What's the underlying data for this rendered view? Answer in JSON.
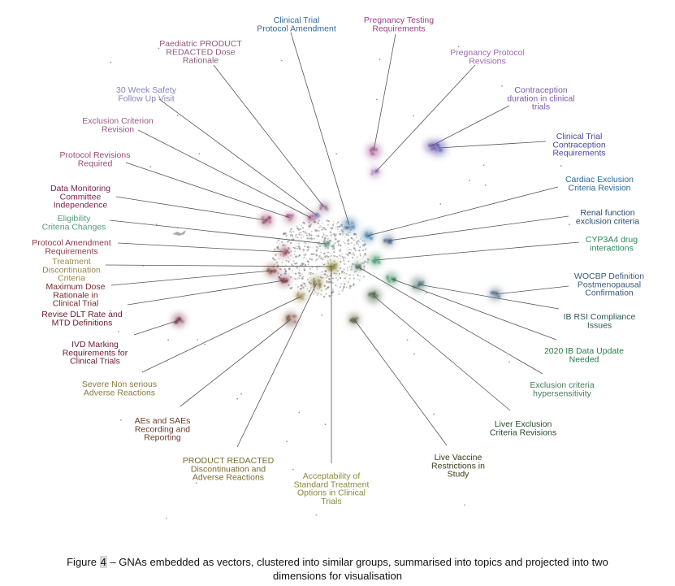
{
  "caption": {
    "prefix": "Figure ",
    "number": "4",
    "line1_rest": " – GNAs embedded as vectors, clustered into similar groups, summarised into topics and projected into two",
    "line2": "dimensions for visualisation"
  },
  "topics": [
    {
      "lines": [
        "Clinical Trial",
        "Protocol Amendment"
      ],
      "color": "#2f6a9e"
    },
    {
      "lines": [
        "Pregnancy Testing",
        "Requirements"
      ],
      "color": "#9a3f88"
    },
    {
      "lines": [
        "Paediatric PRODUCT",
        "REDACTED Dose",
        "Rationale"
      ],
      "color": "#8a5a80"
    },
    {
      "lines": [
        "Pregnancy Protocol",
        "Revisions"
      ],
      "color": "#a06ab4"
    },
    {
      "lines": [
        "Contraception",
        "duration in clinical",
        "trials"
      ],
      "color": "#7a5aa6"
    },
    {
      "lines": [
        "Clinical Trial",
        "Contraception",
        "Requirements"
      ],
      "color": "#4a48a6"
    },
    {
      "lines": [
        "30 Week Safety",
        "Follow Up Visit"
      ],
      "color": "#8484b8"
    },
    {
      "lines": [
        "Exclusion Criterion",
        "Revision"
      ],
      "color": "#9a5a84"
    },
    {
      "lines": [
        "Protocol Revisions",
        "Required"
      ],
      "color": "#9a4a7a"
    },
    {
      "lines": [
        "Data Monitoring",
        "Committee",
        "Independence"
      ],
      "color": "#7a1f4a"
    },
    {
      "lines": [
        "Eligibility",
        "Criteria Changes"
      ],
      "color": "#5a9a7a"
    },
    {
      "lines": [
        "Protocol Amendment",
        "Requirements"
      ],
      "color": "#8a3a4a"
    },
    {
      "lines": [
        "Treatment",
        "Discontinuation",
        "Criteria"
      ],
      "color": "#9a8a4a"
    },
    {
      "lines": [
        "Maximum Dose",
        "Rationale in",
        "Clinical Trial"
      ],
      "color": "#7a2a2a"
    },
    {
      "lines": [
        "Revise DLT Rate and",
        "MTD Definitions"
      ],
      "color": "#6a1a2a"
    },
    {
      "lines": [
        "IVD Marking",
        "Requirements for",
        "Clinical Trials"
      ],
      "color": "#6a1a30"
    },
    {
      "lines": [
        "Severe Non serious",
        "Adverse Reactions"
      ],
      "color": "#8a7a3a"
    },
    {
      "lines": [
        "AEs and SAEs",
        "Recording and",
        "Reporting"
      ],
      "color": "#6a3a2a"
    },
    {
      "lines": [
        "PRODUCT REDACTED",
        "Discontinuation and",
        "Adverse Reactions"
      ],
      "color": "#7a6a2a"
    },
    {
      "lines": [
        "Acceptability of",
        "Standard Treatment",
        "Options in Clinical",
        "Trials"
      ],
      "color": "#8a8a3a"
    },
    {
      "lines": [
        "Live Vaccine",
        "Restrictions in",
        "Study"
      ],
      "color": "#3a3a1a"
    },
    {
      "lines": [
        "Liver Exclusion",
        "Criteria Revisions"
      ],
      "color": "#2a4a2a"
    },
    {
      "lines": [
        "Exclusion criteria",
        "hypersensitivity"
      ],
      "color": "#4a7a5a"
    },
    {
      "lines": [
        "2020 IB Data Update",
        "Needed"
      ],
      "color": "#2a7a4a"
    },
    {
      "lines": [
        "IB RSI Compliance",
        "Issues"
      ],
      "color": "#2a5a5a"
    },
    {
      "lines": [
        "WOCBP Definition",
        "Postmenopausal",
        "Confirmation"
      ],
      "color": "#3a5a7a"
    },
    {
      "lines": [
        "CYP3A4 drug",
        "interactions"
      ],
      "color": "#2a8a5a"
    },
    {
      "lines": [
        "Renal function",
        "exclusion criteria"
      ],
      "color": "#2a4a6a"
    },
    {
      "lines": [
        "Cardiac Exclusion",
        "Criteria Revision"
      ],
      "color": "#2a6a9a"
    }
  ]
}
